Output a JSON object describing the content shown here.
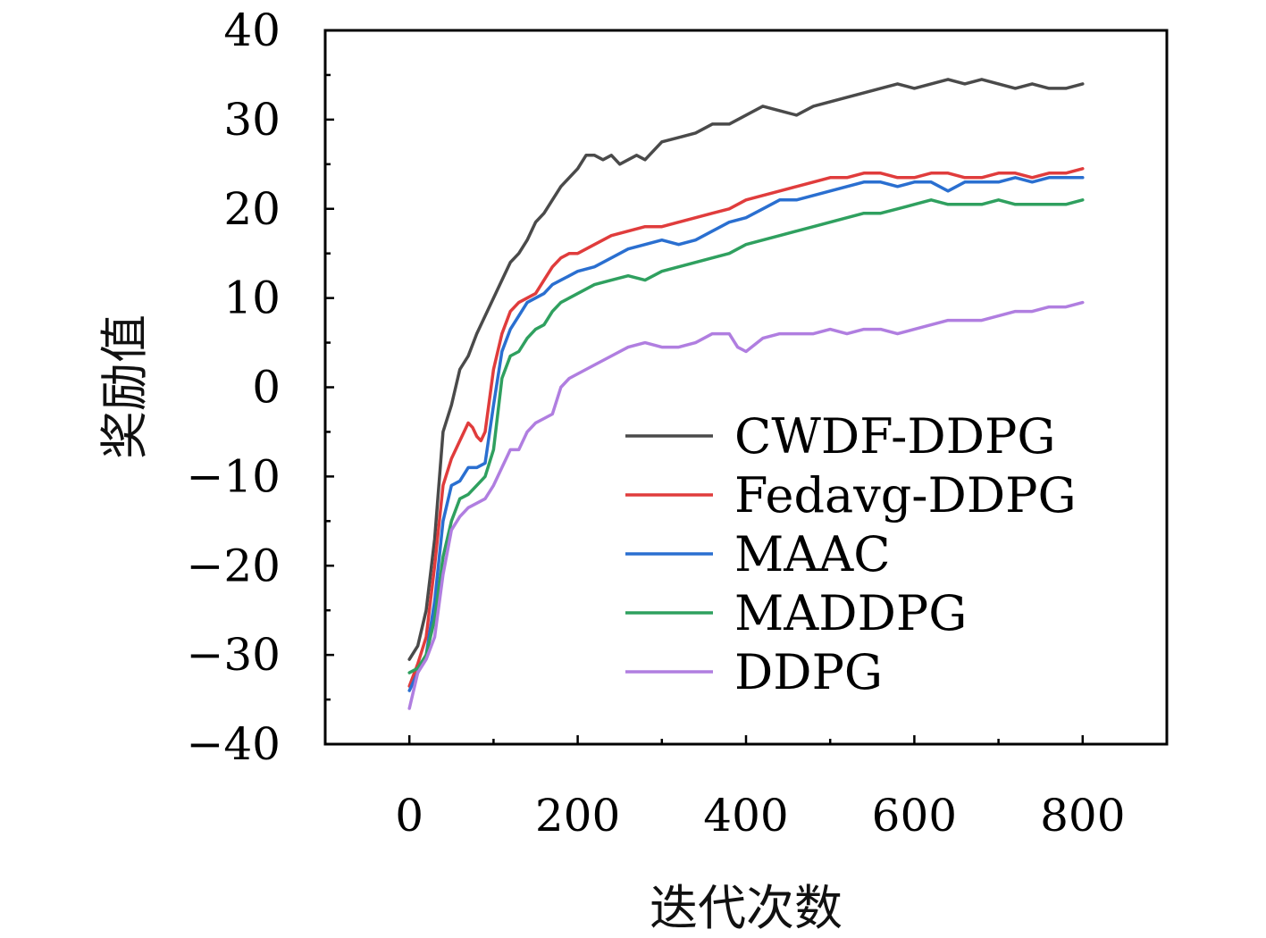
{
  "chart_data": {
    "type": "line",
    "title": "",
    "xlabel": "迭代次数",
    "ylabel": "奖励值",
    "xlim": [
      -100,
      900
    ],
    "ylim": [
      -40,
      40
    ],
    "x_ticks": [
      0,
      200,
      400,
      600,
      800
    ],
    "y_ticks": [
      -40,
      -30,
      -20,
      -10,
      0,
      10,
      20,
      30,
      40
    ],
    "x_tick_labels": [
      "0",
      "200",
      "400",
      "600",
      "800"
    ],
    "y_tick_labels": [
      "−40",
      "−30",
      "−20",
      "−10",
      "0",
      "10",
      "20",
      "30",
      "40"
    ],
    "grid": false,
    "legend_position": "lower-right",
    "series": [
      {
        "name": "CWDF-DDPG",
        "color": "#4a4a4a",
        "x": [
          0,
          10,
          20,
          30,
          40,
          50,
          60,
          70,
          80,
          90,
          100,
          110,
          120,
          130,
          140,
          150,
          160,
          170,
          180,
          190,
          200,
          210,
          220,
          230,
          240,
          250,
          260,
          270,
          280,
          290,
          300,
          320,
          340,
          360,
          380,
          400,
          420,
          440,
          460,
          480,
          500,
          520,
          540,
          560,
          580,
          600,
          620,
          640,
          660,
          680,
          700,
          720,
          740,
          760,
          780,
          800
        ],
        "y": [
          -30.5,
          -29,
          -25,
          -17,
          -5,
          -2,
          2,
          3.5,
          6,
          8,
          10,
          12,
          14,
          15,
          16.5,
          18.5,
          19.5,
          21,
          22.5,
          23.5,
          24.5,
          26,
          26,
          25.5,
          26,
          25,
          25.5,
          26,
          25.5,
          26.5,
          27.5,
          28,
          28.5,
          29.5,
          29.5,
          30.5,
          31.5,
          31,
          30.5,
          31.5,
          32,
          32.5,
          33,
          33.5,
          34,
          33.5,
          34,
          34.5,
          34,
          34.5,
          34,
          33.5,
          34,
          33.5,
          33.5,
          34
        ]
      },
      {
        "name": "Fedavg-DDPG",
        "color": "#e03c3c",
        "x": [
          0,
          10,
          20,
          30,
          40,
          50,
          60,
          70,
          75,
          80,
          85,
          90,
          100,
          110,
          120,
          130,
          140,
          150,
          160,
          170,
          180,
          190,
          200,
          220,
          240,
          260,
          280,
          300,
          320,
          340,
          360,
          380,
          400,
          420,
          440,
          460,
          480,
          500,
          520,
          540,
          560,
          580,
          600,
          620,
          640,
          660,
          680,
          700,
          720,
          740,
          760,
          780,
          800
        ],
        "y": [
          -33.5,
          -31,
          -28,
          -20,
          -11,
          -8,
          -6,
          -4,
          -4.5,
          -5.5,
          -6,
          -5,
          2,
          6,
          8.5,
          9.5,
          10,
          10.5,
          12,
          13.5,
          14.5,
          15,
          15,
          16,
          17,
          17.5,
          18,
          18,
          18.5,
          19,
          19.5,
          20,
          21,
          21.5,
          22,
          22.5,
          23,
          23.5,
          23.5,
          24,
          24,
          23.5,
          23.5,
          24,
          24,
          23.5,
          23.5,
          24,
          24,
          23.5,
          24,
          24,
          24.5
        ]
      },
      {
        "name": "MAAC",
        "color": "#2a6fd0",
        "x": [
          0,
          10,
          20,
          30,
          40,
          50,
          60,
          70,
          80,
          90,
          100,
          110,
          120,
          130,
          140,
          150,
          160,
          170,
          180,
          190,
          200,
          220,
          240,
          260,
          280,
          300,
          320,
          340,
          360,
          380,
          400,
          420,
          440,
          460,
          480,
          500,
          520,
          540,
          560,
          580,
          600,
          620,
          640,
          660,
          680,
          700,
          720,
          740,
          760,
          780,
          800
        ],
        "y": [
          -34,
          -32,
          -30,
          -24,
          -15,
          -11,
          -10.5,
          -9,
          -9,
          -8.5,
          -2,
          4,
          6.5,
          8,
          9.5,
          10,
          10.5,
          11.5,
          12,
          12.5,
          13,
          13.5,
          14.5,
          15.5,
          16,
          16.5,
          16,
          16.5,
          17.5,
          18.5,
          19,
          20,
          21,
          21,
          21.5,
          22,
          22.5,
          23,
          23,
          22.5,
          23,
          23,
          22,
          23,
          23,
          23,
          23.5,
          23,
          23.5,
          23.5,
          23.5
        ]
      },
      {
        "name": "MADDPG",
        "color": "#2fa05f",
        "x": [
          0,
          10,
          20,
          30,
          40,
          50,
          60,
          70,
          80,
          90,
          100,
          110,
          120,
          130,
          140,
          150,
          160,
          170,
          180,
          190,
          200,
          220,
          240,
          260,
          280,
          300,
          320,
          340,
          360,
          380,
          400,
          420,
          440,
          460,
          480,
          500,
          520,
          540,
          560,
          580,
          600,
          620,
          640,
          660,
          680,
          700,
          720,
          740,
          760,
          780,
          800
        ],
        "y": [
          -32,
          -31.5,
          -30,
          -26,
          -19,
          -15,
          -12.5,
          -12,
          -11,
          -10,
          -7,
          1,
          3.5,
          4,
          5.5,
          6.5,
          7,
          8.5,
          9.5,
          10,
          10.5,
          11.5,
          12,
          12.5,
          12,
          13,
          13.5,
          14,
          14.5,
          15,
          16,
          16.5,
          17,
          17.5,
          18,
          18.5,
          19,
          19.5,
          19.5,
          20,
          20.5,
          21,
          20.5,
          20.5,
          20.5,
          21,
          20.5,
          20.5,
          20.5,
          20.5,
          21
        ]
      },
      {
        "name": "DDPG",
        "color": "#b07ee0",
        "x": [
          0,
          10,
          20,
          30,
          40,
          50,
          60,
          70,
          80,
          90,
          100,
          110,
          120,
          130,
          140,
          150,
          160,
          170,
          180,
          190,
          200,
          220,
          240,
          260,
          280,
          300,
          320,
          340,
          360,
          380,
          390,
          400,
          420,
          440,
          460,
          480,
          500,
          520,
          540,
          560,
          580,
          600,
          620,
          640,
          660,
          680,
          700,
          720,
          740,
          760,
          780,
          800
        ],
        "y": [
          -36,
          -32,
          -30.5,
          -28,
          -21,
          -16,
          -14.5,
          -13.5,
          -13,
          -12.5,
          -11,
          -9,
          -7,
          -7,
          -5,
          -4,
          -3.5,
          -3,
          0,
          1,
          1.5,
          2.5,
          3.5,
          4.5,
          5,
          4.5,
          4.5,
          5,
          6,
          6,
          4.5,
          4,
          5.5,
          6,
          6,
          6,
          6.5,
          6,
          6.5,
          6.5,
          6,
          6.5,
          7,
          7.5,
          7.5,
          7.5,
          8,
          8.5,
          8.5,
          9,
          9,
          9.5
        ]
      }
    ]
  }
}
